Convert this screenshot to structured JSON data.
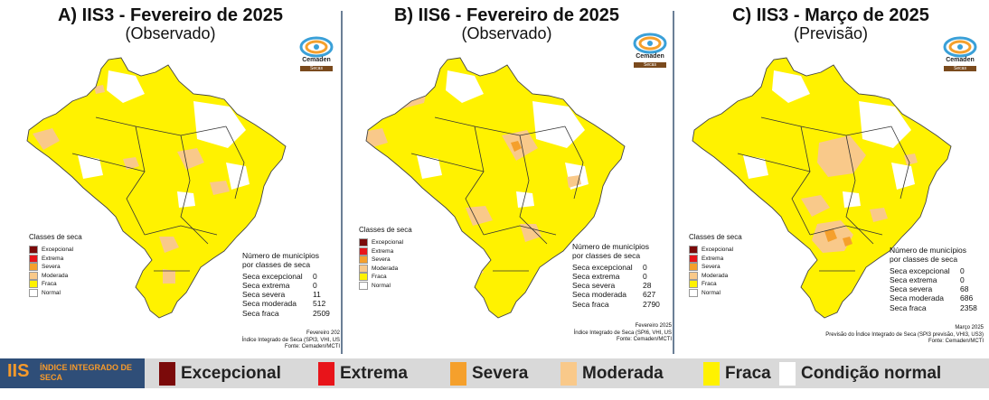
{
  "panels": [
    {
      "title": "A) IIS3 - Fevereiro de 2025",
      "subtitle": "(Observado)",
      "legend_title": "Classes de seca",
      "legend_items": [
        "Excepcional",
        "Extrema",
        "Severa",
        "Moderada",
        "Fraca",
        "Normal"
      ],
      "stats_header": [
        "Número de municípios",
        "por classes de seca"
      ],
      "stats": [
        {
          "label": "Seca excepcional",
          "value": "0"
        },
        {
          "label": "Seca extrema",
          "value": "0"
        },
        {
          "label": "Seca severa",
          "value": "11"
        },
        {
          "label": "Seca moderada",
          "value": "512"
        },
        {
          "label": "Seca fraca",
          "value": "2509"
        }
      ],
      "footer": [
        "Fevereiro 202",
        "Índice Integrado de Seca (SPI3, VHI, US",
        "Fonte: Cemaden/MCTI"
      ]
    },
    {
      "title": "B) IIS6 - Fevereiro de 2025",
      "subtitle": "(Observado)",
      "legend_title": "Classes de seca",
      "legend_items": [
        "Excepcional",
        "Extrema",
        "Severa",
        "Moderada",
        "Fraca",
        "Normal"
      ],
      "stats_header": [
        "Número de municípios",
        "por classes de seca"
      ],
      "stats": [
        {
          "label": "Seca excepcional",
          "value": "0"
        },
        {
          "label": "Seca extrema",
          "value": "0"
        },
        {
          "label": "Seca severa",
          "value": "28"
        },
        {
          "label": "Seca moderada",
          "value": "627"
        },
        {
          "label": "Seca fraca",
          "value": "2790"
        }
      ],
      "footer": [
        "Fevereiro 2025",
        "Índice Integrado de Seca (SPI6, VHI, US",
        "Fonte: Cemaden/MCTI"
      ]
    },
    {
      "title": "C) IIS3 - Março de 2025",
      "subtitle": "(Previsão)",
      "legend_title": "Classes de seca",
      "legend_items": [
        "Excepcional",
        "Extrema",
        "Severa",
        "Moderada",
        "Fraca",
        "Normal"
      ],
      "stats_header": [
        "Número de municípios",
        "por classes de seca"
      ],
      "stats": [
        {
          "label": "Seca excepcional",
          "value": "0"
        },
        {
          "label": "Seca extrema",
          "value": "0"
        },
        {
          "label": "Seca severa",
          "value": "68"
        },
        {
          "label": "Seca moderada",
          "value": "686"
        },
        {
          "label": "Seca fraca",
          "value": "2358"
        }
      ],
      "footer": [
        "Março 2025",
        "Previsão do Índice Integrado de Seca (SPI3 previsão, VHI3, US3)",
        "Fonte: Cemaden/MCTI"
      ]
    }
  ],
  "logo": {
    "name": "Cemaden",
    "tag": "Secas"
  },
  "bottom_legend": {
    "iis_abbr": "IIS",
    "iis_full": "ÍNDICE INTEGRADO DE SECA",
    "items": [
      "Excepcional",
      "Extrema",
      "Severa",
      "Moderada",
      "Fraca",
      "Condição normal"
    ]
  },
  "colors": {
    "excepcional": "#7b0a0a",
    "extrema": "#e8141a",
    "severa": "#f5a02c",
    "moderada": "#f9c98a",
    "fraca": "#fff200",
    "normal": "#ffffff",
    "bar_bg": "#d9d9d9",
    "iis_box": "#2f4e78",
    "iis_text": "#f79a2a"
  }
}
